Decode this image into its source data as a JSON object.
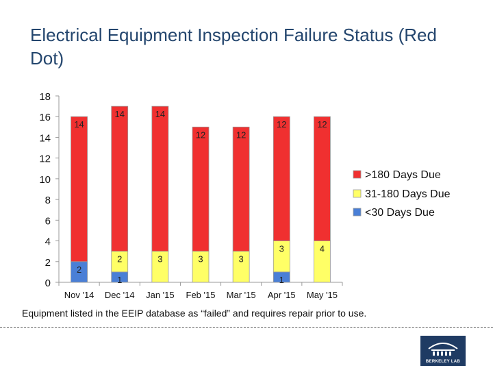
{
  "title": "Electrical Equipment Inspection Failure Status (Red Dot)",
  "footnote": "Equipment listed in the EEIP database as “failed” and requires repair prior to use.",
  "logo_text": "BERKELEY LAB",
  "chart_data": {
    "type": "bar",
    "stacked": true,
    "title": "Electrical Equipment Inspection Failure Status (Red Dot)",
    "xlabel": "",
    "ylabel": "",
    "ylim": [
      0,
      18
    ],
    "yticks": [
      0,
      2,
      4,
      6,
      8,
      10,
      12,
      14,
      16,
      18
    ],
    "grid": false,
    "legend_position": "right",
    "categories": [
      "Nov '14",
      "Dec '14",
      "Jan '15",
      "Feb '15",
      "Mar '15",
      "Apr '15",
      "May '15"
    ],
    "series": [
      {
        "name": "<30 Days Due",
        "color": "#4a7fd6",
        "values": [
          2,
          1,
          0,
          0,
          0,
          1,
          0
        ]
      },
      {
        "name": "31-180 Days Due",
        "color": "#ffff66",
        "values": [
          0,
          2,
          3,
          3,
          3,
          3,
          4
        ]
      },
      {
        "name": ">180 Days Due",
        "color": "#f03030",
        "values": [
          14,
          14,
          14,
          12,
          12,
          12,
          12
        ]
      }
    ],
    "legend_order": [
      ">180 Days Due",
      "31-180 Days Due",
      "<30 Days Due"
    ]
  }
}
